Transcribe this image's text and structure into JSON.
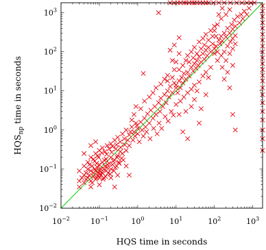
{
  "chart_data": {
    "type": "scatter",
    "xlabel": "HQS time in seconds",
    "ylabel": {
      "prefix": "HQS",
      "subscript": "np",
      "suffix": " time in seconds"
    },
    "x_scale": "log",
    "y_scale": "log",
    "xlim": [
      0.01,
      1800
    ],
    "ylim": [
      0.01,
      1800
    ],
    "x_ticks": [
      {
        "value": 0.01,
        "base": "10",
        "exp": "−2"
      },
      {
        "value": 0.1,
        "base": "10",
        "exp": "−1"
      },
      {
        "value": 1,
        "base": "10",
        "exp": "0"
      },
      {
        "value": 10,
        "base": "10",
        "exp": "1"
      },
      {
        "value": 100,
        "base": "10",
        "exp": "2"
      },
      {
        "value": 1000,
        "base": "10",
        "exp": "3"
      }
    ],
    "y_ticks": [
      {
        "value": 0.01,
        "base": "10",
        "exp": "−2"
      },
      {
        "value": 0.1,
        "base": "10",
        "exp": "−1"
      },
      {
        "value": 1,
        "base": "10",
        "exp": "0"
      },
      {
        "value": 10,
        "base": "10",
        "exp": "1"
      },
      {
        "value": 100,
        "base": "10",
        "exp": "2"
      },
      {
        "value": 1000,
        "base": "10",
        "exp": "3"
      }
    ],
    "diagonal_color": "#00cc00",
    "marker_color": "#e8000b",
    "marker": "x",
    "points": [
      [
        0.03,
        0.05
      ],
      [
        0.035,
        0.06
      ],
      [
        0.04,
        0.07
      ],
      [
        0.04,
        0.045
      ],
      [
        0.045,
        0.08
      ],
      [
        0.05,
        0.06
      ],
      [
        0.05,
        0.1
      ],
      [
        0.055,
        0.07
      ],
      [
        0.06,
        0.05
      ],
      [
        0.06,
        0.09
      ],
      [
        0.065,
        0.12
      ],
      [
        0.07,
        0.065
      ],
      [
        0.07,
        0.08
      ],
      [
        0.075,
        0.1
      ],
      [
        0.08,
        0.055
      ],
      [
        0.08,
        0.09
      ],
      [
        0.085,
        0.14
      ],
      [
        0.09,
        0.07
      ],
      [
        0.09,
        0.11
      ],
      [
        0.095,
        0.08
      ],
      [
        0.1,
        0.06
      ],
      [
        0.1,
        0.09
      ],
      [
        0.1,
        0.13
      ],
      [
        0.11,
        0.07
      ],
      [
        0.11,
        0.1
      ],
      [
        0.12,
        0.08
      ],
      [
        0.12,
        0.15
      ],
      [
        0.13,
        0.1
      ],
      [
        0.13,
        0.06
      ],
      [
        0.14,
        0.12
      ],
      [
        0.15,
        0.09
      ],
      [
        0.15,
        0.18
      ],
      [
        0.16,
        0.11
      ],
      [
        0.17,
        0.08
      ],
      [
        0.18,
        0.14
      ],
      [
        0.2,
        0.1
      ],
      [
        0.2,
        0.2
      ],
      [
        0.22,
        0.13
      ],
      [
        0.24,
        0.09
      ],
      [
        0.25,
        0.17
      ],
      [
        0.28,
        0.12
      ],
      [
        0.3,
        0.22
      ],
      [
        0.32,
        0.15
      ],
      [
        0.35,
        0.28
      ],
      [
        0.38,
        0.19
      ],
      [
        0.04,
        0.12
      ],
      [
        0.05,
        0.15
      ],
      [
        0.06,
        0.2
      ],
      [
        0.07,
        0.18
      ],
      [
        0.08,
        0.25
      ],
      [
        0.09,
        0.22
      ],
      [
        0.1,
        0.3
      ],
      [
        0.12,
        0.35
      ],
      [
        0.14,
        0.28
      ],
      [
        0.16,
        0.4
      ],
      [
        0.18,
        0.33
      ],
      [
        0.2,
        0.45
      ],
      [
        0.22,
        0.38
      ],
      [
        0.25,
        0.55
      ],
      [
        0.28,
        0.42
      ],
      [
        0.3,
        0.65
      ],
      [
        0.35,
        0.5
      ],
      [
        0.4,
        0.8
      ],
      [
        0.45,
        0.6
      ],
      [
        0.5,
        1.0
      ],
      [
        0.6,
        0.75
      ],
      [
        0.7,
        1.2
      ],
      [
        0.8,
        0.9
      ],
      [
        0.9,
        1.5
      ],
      [
        1.0,
        1.1
      ],
      [
        0.03,
        0.09
      ],
      [
        0.045,
        0.055
      ],
      [
        0.055,
        0.13
      ],
      [
        0.065,
        0.045
      ],
      [
        0.075,
        0.16
      ],
      [
        0.085,
        0.06
      ],
      [
        0.095,
        0.2
      ],
      [
        0.105,
        0.075
      ],
      [
        0.115,
        0.26
      ],
      [
        0.125,
        0.055
      ],
      [
        0.135,
        0.17
      ],
      [
        0.145,
        0.065
      ],
      [
        0.155,
        0.24
      ],
      [
        0.165,
        0.13
      ],
      [
        0.19,
        0.075
      ],
      [
        0.21,
        0.27
      ],
      [
        0.23,
        0.16
      ],
      [
        0.26,
        0.11
      ],
      [
        0.27,
        0.33
      ],
      [
        0.29,
        0.2
      ],
      [
        0.33,
        0.14
      ],
      [
        0.36,
        0.36
      ],
      [
        0.4,
        0.25
      ],
      [
        0.42,
        0.17
      ],
      [
        0.46,
        0.42
      ],
      [
        0.5,
        0.3
      ],
      [
        0.55,
        0.55
      ],
      [
        0.6,
        0.4
      ],
      [
        0.65,
        0.9
      ],
      [
        0.75,
        0.55
      ],
      [
        0.85,
        0.7
      ],
      [
        0.95,
        1.3
      ],
      [
        0.03,
        0.035
      ],
      [
        0.06,
        0.035
      ],
      [
        0.1,
        0.04
      ],
      [
        0.04,
        0.25
      ],
      [
        0.06,
        0.4
      ],
      [
        0.08,
        0.5
      ],
      [
        0.2,
        0.06
      ],
      [
        0.3,
        0.07
      ],
      [
        0.5,
        0.12
      ],
      [
        0.25,
        0.035
      ],
      [
        0.6,
        0.07
      ],
      [
        1.0,
        0.8
      ],
      [
        1.2,
        1.6
      ],
      [
        1.3,
        1.0
      ],
      [
        1.5,
        2.0
      ],
      [
        1.6,
        1.2
      ],
      [
        1.8,
        2.6
      ],
      [
        2.0,
        1.5
      ],
      [
        2.2,
        3.2
      ],
      [
        2.5,
        2.0
      ],
      [
        2.8,
        4.0
      ],
      [
        3.0,
        2.5
      ],
      [
        3.5,
        5.0
      ],
      [
        3.8,
        3.0
      ],
      [
        4.0,
        6.5
      ],
      [
        4.5,
        4.0
      ],
      [
        5.0,
        8.0
      ],
      [
        5.5,
        5.0
      ],
      [
        6.0,
        10.0
      ],
      [
        6.5,
        7.0
      ],
      [
        7.0,
        13.0
      ],
      [
        8.0,
        9.0
      ],
      [
        9.0,
        16.0
      ],
      [
        10.0,
        12.0
      ],
      [
        1.1,
        0.5
      ],
      [
        1.4,
        0.7
      ],
      [
        1.7,
        0.9
      ],
      [
        2.1,
        0.6
      ],
      [
        2.6,
        1.1
      ],
      [
        3.2,
        0.8
      ],
      [
        3.6,
        1.5
      ],
      [
        4.2,
        1.1
      ],
      [
        5.2,
        2.2
      ],
      [
        6.2,
        1.7
      ],
      [
        7.5,
        3.0
      ],
      [
        8.5,
        2.4
      ],
      [
        1.2,
        3.5
      ],
      [
        1.5,
        5.5
      ],
      [
        2.0,
        7.0
      ],
      [
        2.5,
        9.0
      ],
      [
        3.0,
        12.0
      ],
      [
        4.0,
        15.0
      ],
      [
        5.0,
        20.0
      ],
      [
        6.0,
        25.0
      ],
      [
        0.8,
        2.5
      ],
      [
        0.9,
        4.0
      ],
      [
        0.7,
        1.8
      ],
      [
        10,
        14
      ],
      [
        11,
        9
      ],
      [
        12,
        18
      ],
      [
        13,
        12
      ],
      [
        14,
        22
      ],
      [
        15,
        16
      ],
      [
        16,
        28
      ],
      [
        18,
        20
      ],
      [
        20,
        30
      ],
      [
        22,
        24
      ],
      [
        25,
        40
      ],
      [
        28,
        32
      ],
      [
        30,
        50
      ],
      [
        33,
        38
      ],
      [
        35,
        60
      ],
      [
        38,
        45
      ],
      [
        40,
        75
      ],
      [
        45,
        55
      ],
      [
        50,
        90
      ],
      [
        55,
        65
      ],
      [
        60,
        110
      ],
      [
        65,
        80
      ],
      [
        70,
        130
      ],
      [
        80,
        100
      ],
      [
        90,
        160
      ],
      [
        100,
        120
      ],
      [
        12,
        35
      ],
      [
        15,
        45
      ],
      [
        18,
        60
      ],
      [
        20,
        80
      ],
      [
        22,
        55
      ],
      [
        25,
        100
      ],
      [
        28,
        70
      ],
      [
        30,
        130
      ],
      [
        35,
        90
      ],
      [
        40,
        180
      ],
      [
        45,
        120
      ],
      [
        50,
        220
      ],
      [
        55,
        150
      ],
      [
        60,
        280
      ],
      [
        70,
        200
      ],
      [
        80,
        350
      ],
      [
        90,
        250
      ],
      [
        100,
        450
      ],
      [
        13,
        5.5
      ],
      [
        16,
        7
      ],
      [
        20,
        9
      ],
      [
        25,
        11
      ],
      [
        30,
        14
      ],
      [
        35,
        10
      ],
      [
        40,
        17
      ],
      [
        50,
        24
      ],
      [
        60,
        30
      ],
      [
        70,
        22
      ],
      [
        80,
        40
      ],
      [
        12,
        2.5
      ],
      [
        18,
        3
      ],
      [
        25,
        4
      ],
      [
        30,
        6
      ],
      [
        45,
        3.5
      ],
      [
        60,
        8
      ],
      [
        40,
        1.5
      ],
      [
        15,
        0.9
      ],
      [
        20,
        0.6
      ],
      [
        10,
        4.5
      ],
      [
        8,
        22
      ],
      [
        9,
        35
      ],
      [
        8,
        60
      ],
      [
        10,
        55
      ],
      [
        12,
        90
      ],
      [
        7,
        110
      ],
      [
        9,
        150
      ],
      [
        6,
        18
      ],
      [
        100,
        90
      ],
      [
        110,
        140
      ],
      [
        120,
        100
      ],
      [
        130,
        200
      ],
      [
        140,
        160
      ],
      [
        150,
        250
      ],
      [
        160,
        190
      ],
      [
        180,
        300
      ],
      [
        200,
        240
      ],
      [
        220,
        400
      ],
      [
        250,
        300
      ],
      [
        280,
        500
      ],
      [
        300,
        380
      ],
      [
        330,
        650
      ],
      [
        350,
        450
      ],
      [
        400,
        800
      ],
      [
        450,
        550
      ],
      [
        500,
        900
      ],
      [
        550,
        700
      ],
      [
        600,
        1100
      ],
      [
        700,
        900
      ],
      [
        800,
        1300
      ],
      [
        120,
        60
      ],
      [
        150,
        80
      ],
      [
        180,
        100
      ],
      [
        220,
        140
      ],
      [
        260,
        180
      ],
      [
        300,
        220
      ],
      [
        350,
        260
      ],
      [
        160,
        40
      ],
      [
        200,
        60
      ],
      [
        250,
        90
      ],
      [
        300,
        120
      ],
      [
        350,
        160
      ],
      [
        180,
        20
      ],
      [
        220,
        30
      ],
      [
        300,
        45
      ],
      [
        250,
        12
      ],
      [
        350,
        1.0
      ],
      [
        300,
        2.5
      ],
      [
        120,
        500
      ],
      [
        150,
        700
      ],
      [
        100,
        350
      ],
      [
        200,
        900
      ],
      [
        250,
        1200
      ],
      [
        130,
        900
      ],
      [
        160,
        1300
      ],
      [
        110,
        250
      ],
      [
        7,
        1800
      ],
      [
        9,
        1800
      ],
      [
        11,
        1800
      ],
      [
        13,
        1800
      ],
      [
        16,
        1800
      ],
      [
        18,
        1800
      ],
      [
        22,
        1800
      ],
      [
        26,
        1800
      ],
      [
        30,
        1800
      ],
      [
        35,
        1800
      ],
      [
        42,
        1800
      ],
      [
        50,
        1800
      ],
      [
        60,
        1800
      ],
      [
        70,
        1800
      ],
      [
        95,
        1800
      ],
      [
        130,
        1800
      ],
      [
        180,
        1800
      ],
      [
        260,
        1800
      ],
      [
        380,
        1800
      ],
      [
        520,
        1800
      ],
      [
        700,
        1800
      ],
      [
        900,
        1800
      ],
      [
        1100,
        1800
      ],
      [
        3.5,
        1000
      ],
      [
        12,
        230
      ],
      [
        1.4,
        28
      ],
      [
        1800,
        0.3
      ],
      [
        1800,
        0.6
      ],
      [
        1800,
        1.0
      ],
      [
        1800,
        1.8
      ],
      [
        1800,
        3
      ],
      [
        1800,
        5
      ],
      [
        1800,
        8
      ],
      [
        1800,
        12
      ],
      [
        1800,
        18
      ],
      [
        1800,
        25
      ],
      [
        1800,
        35
      ],
      [
        1800,
        50
      ],
      [
        1800,
        70
      ],
      [
        1800,
        100
      ],
      [
        1800,
        140
      ],
      [
        1800,
        200
      ],
      [
        1800,
        280
      ],
      [
        1800,
        400
      ],
      [
        1800,
        560
      ],
      [
        1800,
        800
      ],
      [
        1800,
        1100
      ],
      [
        1800,
        1500
      ]
    ]
  }
}
